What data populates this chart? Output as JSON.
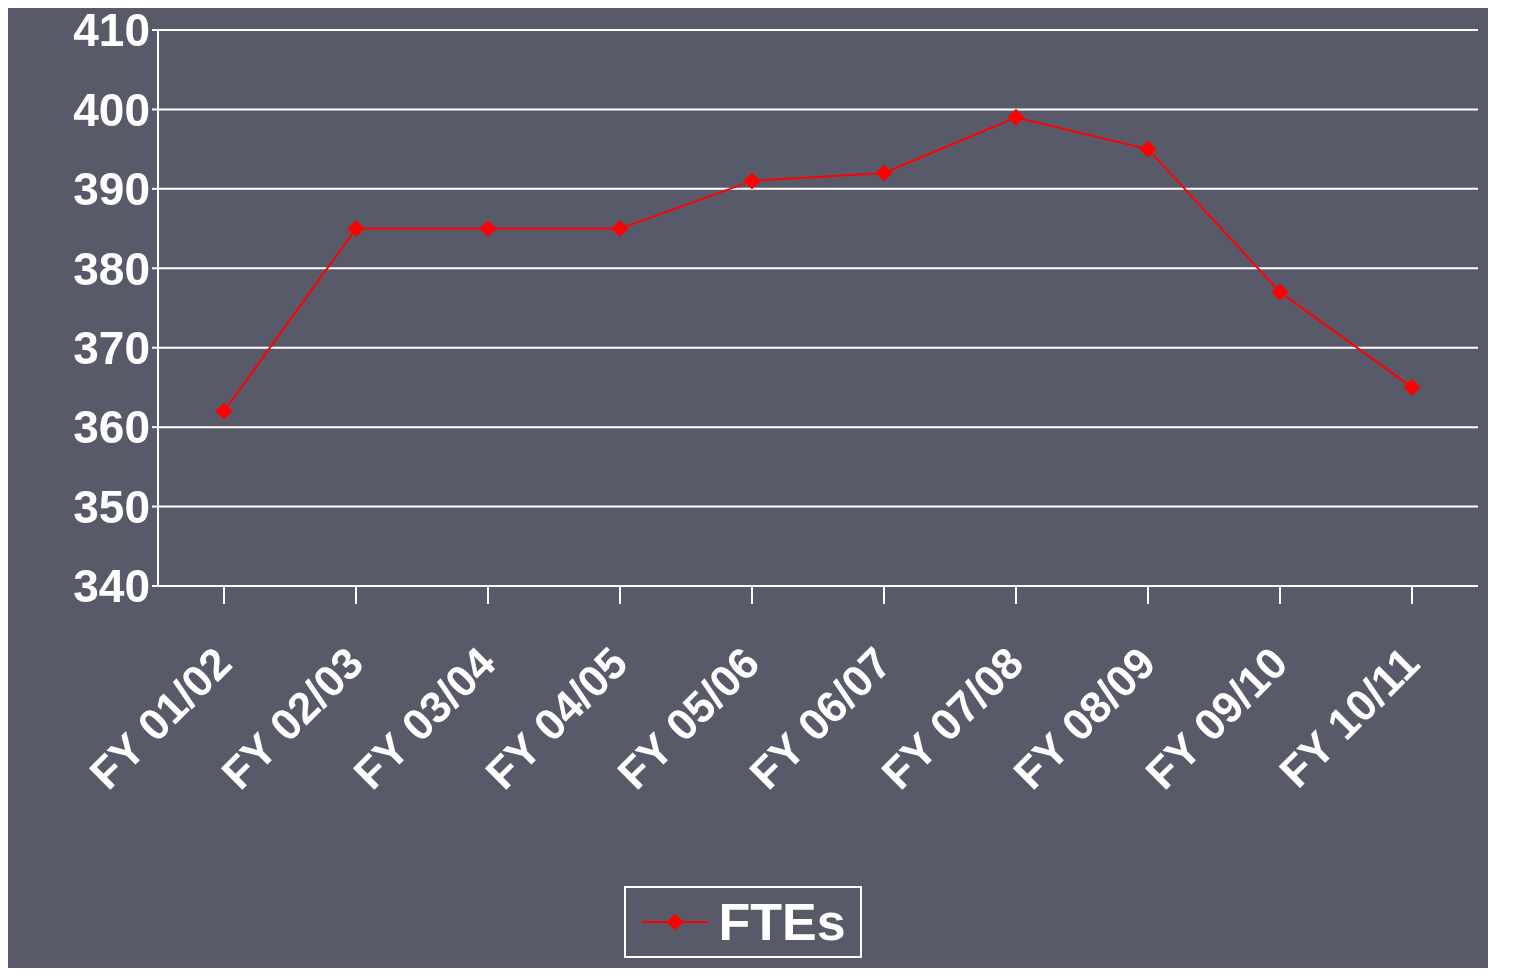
{
  "chart_data": {
    "type": "line",
    "categories": [
      "FY 01/02",
      "FY 02/03",
      "FY 03/04",
      "FY 04/05",
      "FY 05/06",
      "FY 06/07",
      "FY 07/08",
      "FY 08/09",
      "FY 09/10",
      "FY 10/11"
    ],
    "series": [
      {
        "name": "FTEs",
        "color": "#ff0000",
        "values": [
          362,
          385,
          385,
          385,
          391,
          392,
          399,
          395,
          377,
          365
        ]
      }
    ],
    "ylim": [
      340,
      410
    ],
    "yticks": [
      340,
      350,
      360,
      370,
      380,
      390,
      400,
      410
    ],
    "grid": "y",
    "legend": "bottom",
    "marker": "diamond",
    "line_style": "solid"
  }
}
